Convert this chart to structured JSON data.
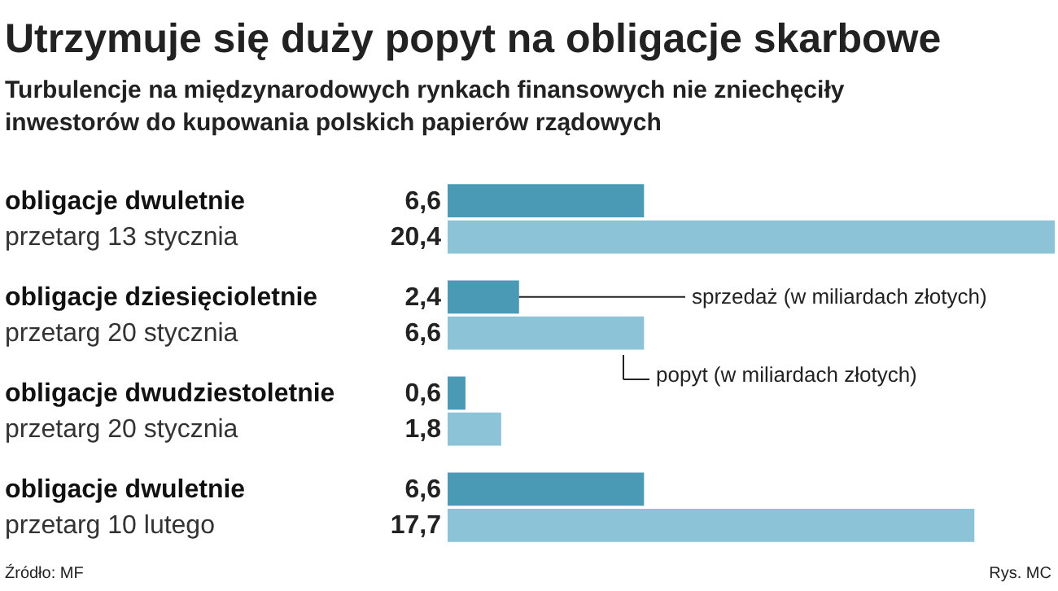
{
  "chart_data": {
    "type": "bar",
    "orientation": "horizontal",
    "title": "Utrzymuje się duży popyt na obligacje skarbowe",
    "subtitle": "Turbulencje na międzynarodowych rynkach finansowych nie zniechęciły\ninwestorów do kupowania polskich papierów rządowych",
    "categories": [
      "obligacje dwuletnie\nprzetarg 13 stycznia",
      "obligacje dziesięcioletnie\nprzetarg 20 stycznia",
      "obligacje dwudziestoletnie\nprzetarg 20 stycznia",
      "obligacje dwuletnie\nprzetarg 10 lutego"
    ],
    "series": [
      {
        "name": "sprzedaż (w miliardach złotych)",
        "color": "#4a9ab5",
        "values": [
          6.6,
          2.4,
          0.6,
          6.6
        ],
        "value_labels": [
          "6,6",
          "2,4",
          "0,6",
          "6,6"
        ]
      },
      {
        "name": "popyt (w miliardach złotych)",
        "color": "#8cc3d6",
        "values": [
          20.4,
          6.6,
          1.8,
          17.7
        ],
        "value_labels": [
          "20,4",
          "6,6",
          "1,8",
          "17,7"
        ]
      }
    ],
    "annotations": [
      "Źródło: MF",
      "Rys. MC"
    ],
    "legend": false
  }
}
